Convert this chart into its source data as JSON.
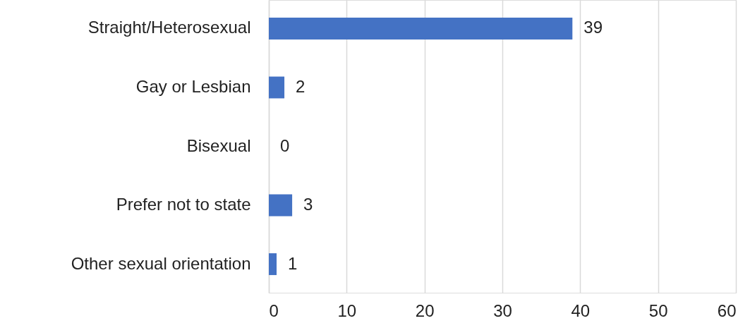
{
  "chart_data": {
    "type": "bar",
    "orientation": "horizontal",
    "categories": [
      "Straight/Heterosexual",
      "Gay or Lesbian",
      "Bisexual",
      "Prefer not to state",
      "Other sexual orientation"
    ],
    "values": [
      39,
      2,
      0,
      3,
      1
    ],
    "color": "#4472c4",
    "xlim": [
      0,
      60
    ],
    "xticks": [
      0,
      10,
      20,
      30,
      40,
      50,
      60
    ],
    "grid": "x",
    "data_labels": true
  }
}
